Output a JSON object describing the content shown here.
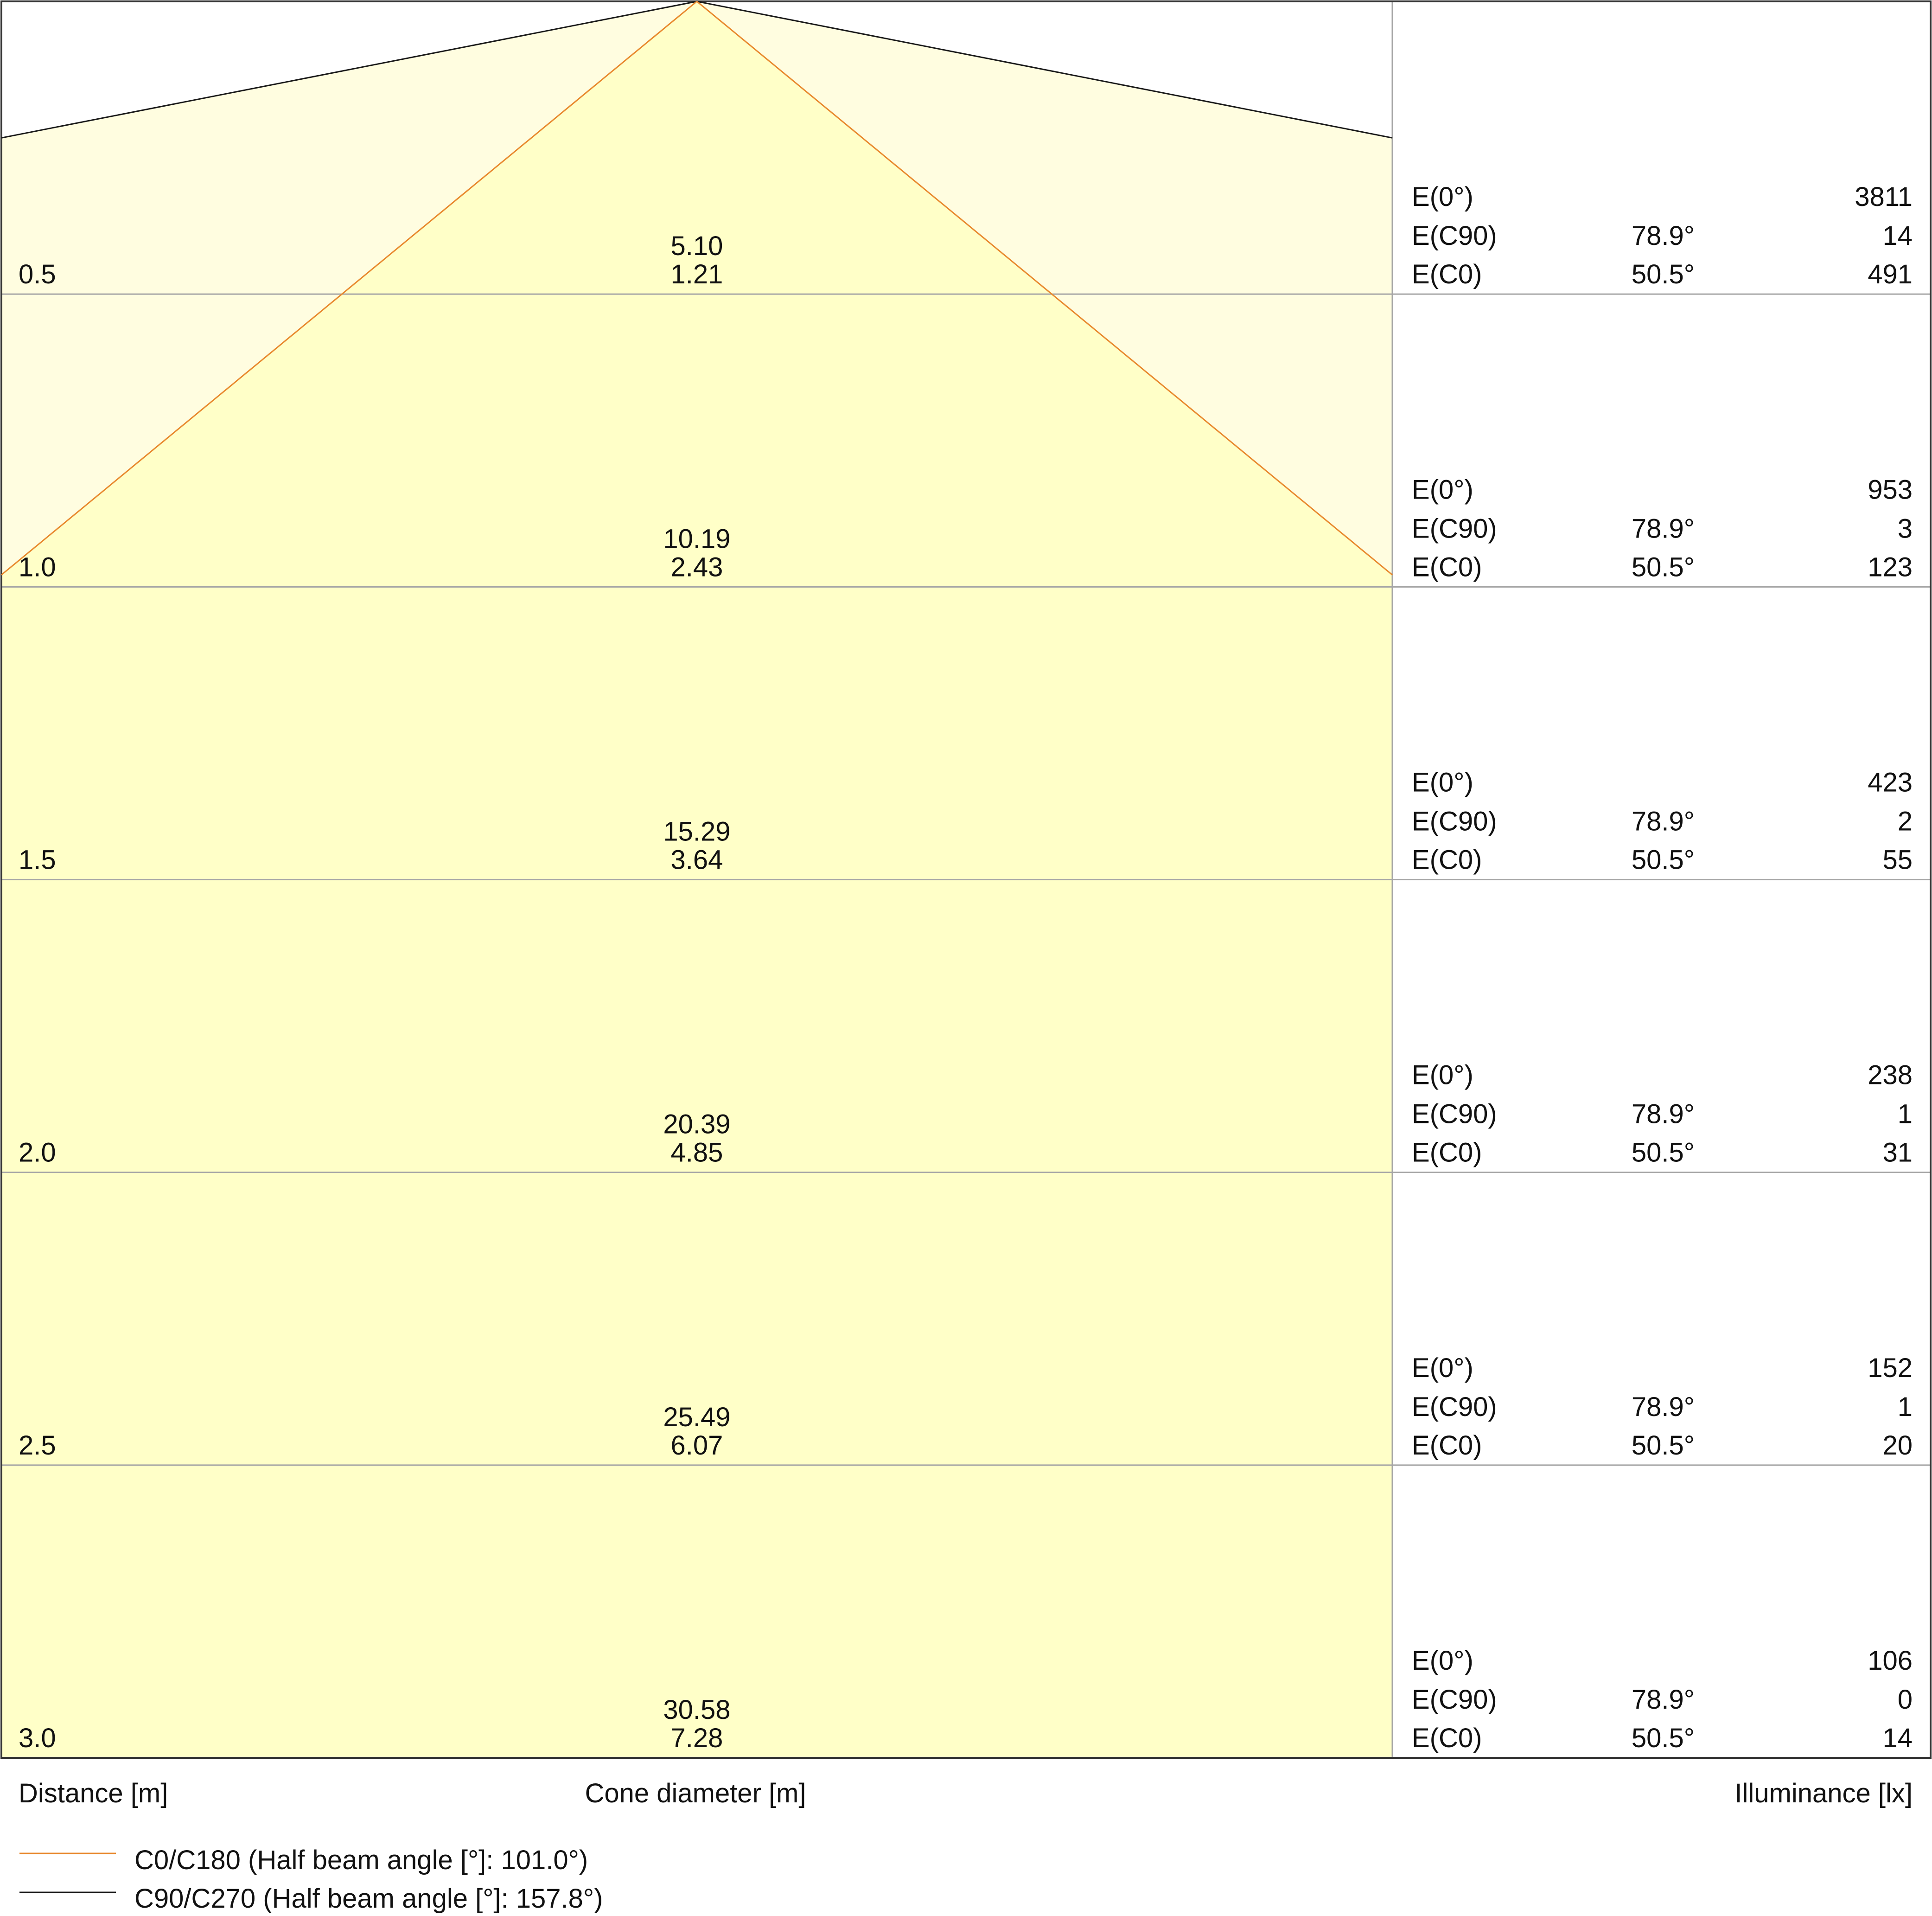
{
  "chart_data": {
    "type": "cone-diagram",
    "axes": {
      "distance_label": "Distance [m]",
      "cone_label": "Cone diameter [m]",
      "illuminance_label": "Illuminance [lx]"
    },
    "rows": [
      {
        "distance": "0.5",
        "cone_c90": "5.10",
        "cone_c0": "1.21",
        "e": [
          {
            "label": "E(0°)",
            "angle": "",
            "value": "3811"
          },
          {
            "label": "E(C90)",
            "angle": "78.9°",
            "value": "14"
          },
          {
            "label": "E(C0)",
            "angle": "50.5°",
            "value": "491"
          }
        ]
      },
      {
        "distance": "1.0",
        "cone_c90": "10.19",
        "cone_c0": "2.43",
        "e": [
          {
            "label": "E(0°)",
            "angle": "",
            "value": "953"
          },
          {
            "label": "E(C90)",
            "angle": "78.9°",
            "value": "3"
          },
          {
            "label": "E(C0)",
            "angle": "50.5°",
            "value": "123"
          }
        ]
      },
      {
        "distance": "1.5",
        "cone_c90": "15.29",
        "cone_c0": "3.64",
        "e": [
          {
            "label": "E(0°)",
            "angle": "",
            "value": "423"
          },
          {
            "label": "E(C90)",
            "angle": "78.9°",
            "value": "2"
          },
          {
            "label": "E(C0)",
            "angle": "50.5°",
            "value": "55"
          }
        ]
      },
      {
        "distance": "2.0",
        "cone_c90": "20.39",
        "cone_c0": "4.85",
        "e": [
          {
            "label": "E(0°)",
            "angle": "",
            "value": "238"
          },
          {
            "label": "E(C90)",
            "angle": "78.9°",
            "value": "1"
          },
          {
            "label": "E(C0)",
            "angle": "50.5°",
            "value": "31"
          }
        ]
      },
      {
        "distance": "2.5",
        "cone_c90": "25.49",
        "cone_c0": "6.07",
        "e": [
          {
            "label": "E(0°)",
            "angle": "",
            "value": "152"
          },
          {
            "label": "E(C90)",
            "angle": "78.9°",
            "value": "1"
          },
          {
            "label": "E(C0)",
            "angle": "50.5°",
            "value": "20"
          }
        ]
      },
      {
        "distance": "3.0",
        "cone_c90": "30.58",
        "cone_c0": "7.28",
        "e": [
          {
            "label": "E(0°)",
            "angle": "",
            "value": "106"
          },
          {
            "label": "E(C90)",
            "angle": "78.9°",
            "value": "0"
          },
          {
            "label": "E(C0)",
            "angle": "50.5°",
            "value": "14"
          }
        ]
      }
    ],
    "legend": [
      {
        "name": "C0/C180 (Half beam angle [°]: 101.0°)",
        "color": "#e8892e",
        "half_beam_angle": 101.0
      },
      {
        "name": "C90/C270 (Half beam angle [°]: 157.8°)",
        "color": "#1a1a1a",
        "half_beam_angle": 157.8
      }
    ],
    "colors": {
      "fill_wide": "#fffde0",
      "fill_narrow": "#ffffc8",
      "grid": "#a6a6a6",
      "frame": "#333333"
    }
  }
}
